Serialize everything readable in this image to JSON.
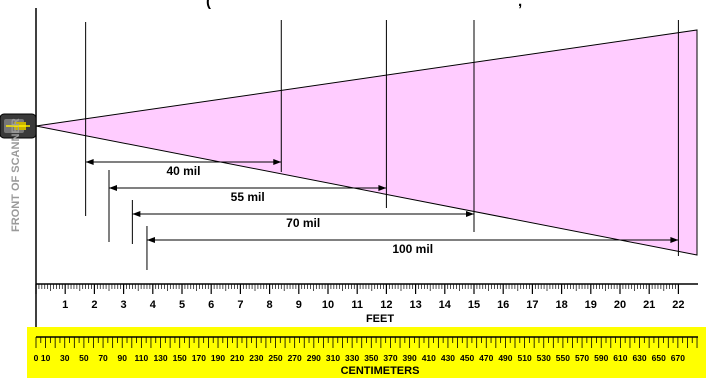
{
  "title_fragment": "(",
  "title_fragment_2": ", ",
  "side_label": "FRONT OF SCANNER",
  "beam_color": "#ffccff",
  "ruler_color": "#ffff00",
  "scanner_icon": "barcode-scanner-icon",
  "ranges": [
    {
      "label": "40 mil",
      "start_ft": 1.7,
      "end_ft": 8.4
    },
    {
      "label": "55 mil",
      "start_ft": 2.5,
      "end_ft": 12.0
    },
    {
      "label": "70 mil",
      "start_ft": 3.3,
      "end_ft": 15.0
    },
    {
      "label": "100 mil",
      "start_ft": 3.8,
      "end_ft": 22.0
    }
  ],
  "feet_axis": {
    "label": "FEET",
    "ticks": [
      "1",
      "2",
      "3",
      "4",
      "5",
      "6",
      "7",
      "8",
      "9",
      "10",
      "11",
      "12",
      "13",
      "14",
      "15",
      "16",
      "17",
      "18",
      "19",
      "20",
      "21",
      "22"
    ]
  },
  "cm_axis": {
    "label": "CENTIMETERS",
    "ticks": [
      "0",
      "10",
      "30",
      "50",
      "70",
      "90",
      "110",
      "130",
      "150",
      "170",
      "190",
      "210",
      "230",
      "250",
      "270",
      "290",
      "310",
      "330",
      "350",
      "370",
      "390",
      "410",
      "430",
      "450",
      "470",
      "490",
      "510",
      "530",
      "550",
      "570",
      "590",
      "610",
      "630",
      "650",
      "670"
    ]
  }
}
